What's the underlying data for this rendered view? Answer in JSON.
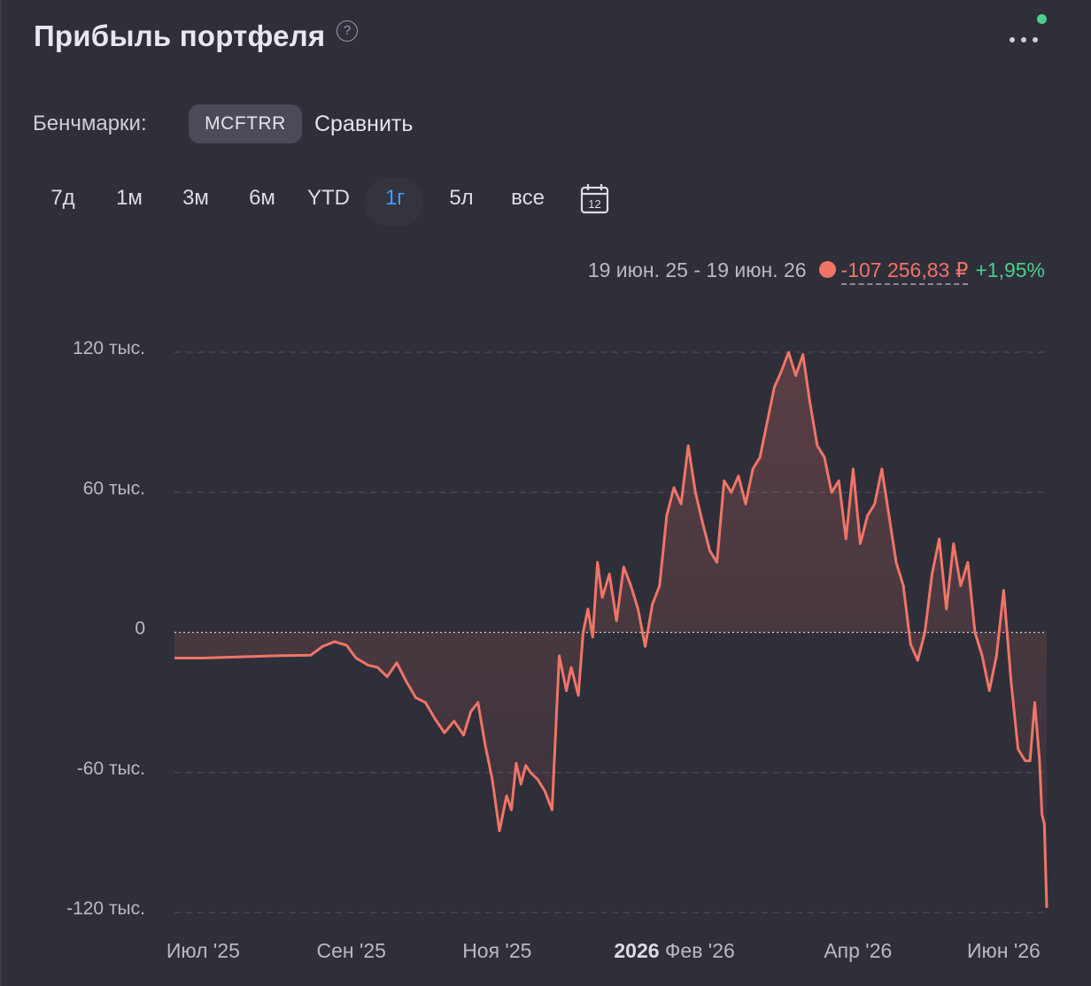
{
  "header": {
    "title": "Прибыль портфеля",
    "help_icon": "?",
    "more_icon": "more-horizontal-icon"
  },
  "benchmarks": {
    "label": "Бенчмарки:",
    "chip": "MCFTRR",
    "compare": "Сравнить"
  },
  "periods": [
    {
      "label": "7д",
      "active": false
    },
    {
      "label": "1м",
      "active": false
    },
    {
      "label": "3м",
      "active": false
    },
    {
      "label": "6м",
      "active": false
    },
    {
      "label": "YTD",
      "active": false
    },
    {
      "label": "1г",
      "active": true
    },
    {
      "label": "5л",
      "active": false
    },
    {
      "label": "все",
      "active": false
    }
  ],
  "calendar_icon_label": "12",
  "summary": {
    "date_range": "19 июн. 25 - 19 июн. 26",
    "pnl": "-107 256,83 ₽",
    "pct": "+1,95%"
  },
  "colors": {
    "line": "#f07566",
    "positive": "#4fce8a",
    "active_period": "#3aa0ff"
  },
  "chart_data": {
    "type": "area",
    "y_ticks": [
      {
        "value": 120000,
        "label": "120 тыс."
      },
      {
        "value": 60000,
        "label": "60 тыс."
      },
      {
        "value": 0,
        "label": "0"
      },
      {
        "value": -60000,
        "label": "-60 тыс."
      },
      {
        "value": -120000,
        "label": "-120 тыс."
      }
    ],
    "x_ticks": [
      {
        "prefix": "",
        "label": "Июл '25",
        "date": "2025-07-01"
      },
      {
        "prefix": "",
        "label": "Сен '25",
        "date": "2025-09-01"
      },
      {
        "prefix": "",
        "label": "Ноя '25",
        "date": "2025-11-01"
      },
      {
        "prefix": "2026",
        "label": "Фев '26",
        "date": "2026-02-01"
      },
      {
        "prefix": "",
        "label": "Апр '26",
        "date": "2026-04-01"
      },
      {
        "prefix": "",
        "label": "Июн '26",
        "date": "2026-06-01"
      }
    ],
    "ylim": [
      -120000,
      120000
    ],
    "grid": true,
    "x": [
      "2025-06-19",
      "2025-07-01",
      "2025-07-15",
      "2025-08-01",
      "2025-08-15",
      "2025-08-20",
      "2025-08-25",
      "2025-08-30",
      "2025-09-03",
      "2025-09-08",
      "2025-09-12",
      "2025-09-16",
      "2025-09-20",
      "2025-09-24",
      "2025-09-28",
      "2025-10-02",
      "2025-10-06",
      "2025-10-10",
      "2025-10-14",
      "2025-10-18",
      "2025-10-21",
      "2025-10-24",
      "2025-10-27",
      "2025-10-30",
      "2025-11-02",
      "2025-11-05",
      "2025-11-07",
      "2025-11-09",
      "2025-11-11",
      "2025-11-13",
      "2025-11-15",
      "2025-11-18",
      "2025-11-21",
      "2025-11-24",
      "2025-11-27",
      "2025-11-30",
      "2025-12-02",
      "2025-12-05",
      "2025-12-07",
      "2025-12-09",
      "2025-12-11",
      "2025-12-13",
      "2025-12-15",
      "2025-12-18",
      "2025-12-21",
      "2025-12-24",
      "2025-12-27",
      "2025-12-30",
      "2026-01-02",
      "2026-01-05",
      "2026-01-08",
      "2026-01-11",
      "2026-01-14",
      "2026-01-17",
      "2026-01-20",
      "2026-01-23",
      "2026-01-26",
      "2026-01-29",
      "2026-02-01",
      "2026-02-04",
      "2026-02-07",
      "2026-02-10",
      "2026-02-13",
      "2026-02-16",
      "2026-02-19",
      "2026-02-22",
      "2026-02-25",
      "2026-02-28",
      "2026-03-03",
      "2026-03-06",
      "2026-03-09",
      "2026-03-12",
      "2026-03-15",
      "2026-03-18",
      "2026-03-21",
      "2026-03-24",
      "2026-03-27",
      "2026-03-30",
      "2026-04-02",
      "2026-04-05",
      "2026-04-08",
      "2026-04-11",
      "2026-04-14",
      "2026-04-17",
      "2026-04-20",
      "2026-04-23",
      "2026-04-26",
      "2026-04-29",
      "2026-05-02",
      "2026-05-05",
      "2026-05-08",
      "2026-05-11",
      "2026-05-14",
      "2026-05-17",
      "2026-05-20",
      "2026-05-23",
      "2026-05-26",
      "2026-05-29",
      "2026-06-01",
      "2026-06-04",
      "2026-06-07",
      "2026-06-10",
      "2026-06-12",
      "2026-06-14",
      "2026-06-16",
      "2026-06-17",
      "2026-06-18",
      "2026-06-19"
    ],
    "series": [
      {
        "values": [
          -11000,
          -11000,
          -10500,
          -10000,
          -9800,
          -6000,
          -4000,
          -5500,
          -11000,
          -14000,
          -15000,
          -19000,
          -13000,
          -21000,
          -28000,
          -30000,
          -37000,
          -43000,
          -38000,
          -44000,
          -34000,
          -30000,
          -48000,
          -63000,
          -85000,
          -70000,
          -76000,
          -56000,
          -65000,
          -57000,
          -60000,
          -63000,
          -68000,
          -76000,
          -10000,
          -25000,
          -15000,
          -27000,
          0,
          10000,
          -2000,
          30000,
          15000,
          25000,
          5000,
          28000,
          20000,
          10000,
          -6000,
          12000,
          20000,
          50000,
          62000,
          55000,
          80000,
          60000,
          47000,
          35000,
          30000,
          65000,
          60000,
          67000,
          55000,
          70000,
          75000,
          90000,
          105000,
          112000,
          120000,
          110000,
          119000,
          98000,
          80000,
          75000,
          60000,
          65000,
          40000,
          70000,
          38000,
          50000,
          55000,
          70000,
          50000,
          30000,
          20000,
          -5000,
          -12000,
          0,
          25000,
          40000,
          10000,
          38000,
          20000,
          30000,
          0,
          -10000,
          -25000,
          -10000,
          18000,
          -20000,
          -50000,
          -55000,
          -55000,
          -30000,
          -55000,
          -78000,
          -82000,
          -118000
        ]
      }
    ]
  }
}
